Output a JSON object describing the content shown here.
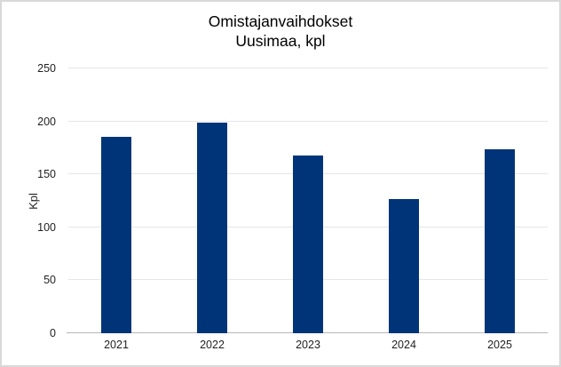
{
  "window": {
    "background": "#ffffff",
    "border_color": "#d9d9d9"
  },
  "chart_data": {
    "type": "bar",
    "title_lines": [
      "Omistajanvaihdokset",
      "Uusimaa, kpl"
    ],
    "title": "Omistajanvaihdokset Uusimaa, kpl",
    "categories": [
      "2021",
      "2022",
      "2023",
      "2024",
      "2025"
    ],
    "values": [
      185,
      199,
      168,
      127,
      174
    ],
    "xlabel": "",
    "ylabel": "Kpl",
    "ylim": [
      0,
      250
    ],
    "yticks": [
      0,
      50,
      100,
      150,
      200,
      250
    ],
    "grid": true,
    "legend": "none",
    "colors": {
      "bar": "#003479",
      "gridline": "#e6e6e6",
      "axis_line": "#b7b7b7",
      "title_text": "#000000",
      "tick_text": "#1f1f1f",
      "axis_title_text": "#1f1f1f"
    }
  }
}
